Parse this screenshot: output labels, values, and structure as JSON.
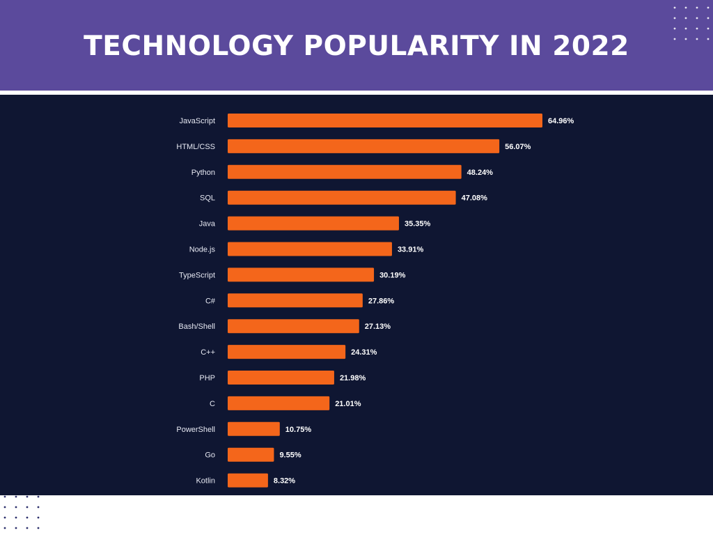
{
  "header": {
    "title": "TECHNOLOGY POPULARITY IN 2022",
    "background_color": "#5b4a9c"
  },
  "colors": {
    "panel": "#0f1632",
    "bar": "#f4661b",
    "dots": "#ffffff"
  },
  "chart_data": {
    "type": "bar",
    "orientation": "horizontal",
    "title": "",
    "xlabel": "",
    "ylabel": "",
    "xlim": [
      0,
      100
    ],
    "grid": false,
    "categories": [
      "JavaScript",
      "HTML/CSS",
      "Python",
      "SQL",
      "Java",
      "Node.js",
      "TypeScript",
      "C#",
      "Bash/Shell",
      "C++",
      "PHP",
      "C",
      "PowerShell",
      "Go",
      "Kotlin"
    ],
    "values": [
      64.96,
      56.07,
      48.24,
      47.08,
      35.35,
      33.91,
      30.19,
      27.86,
      27.13,
      24.31,
      21.98,
      21.01,
      10.75,
      9.55,
      8.32
    ],
    "value_labels": [
      "64.96%",
      "56.07%",
      "48.24%",
      "47.08%",
      "35.35%",
      "33.91%",
      "30.19%",
      "27.86%",
      "27.13%",
      "24.31%",
      "21.98%",
      "21.01%",
      "10.75%",
      "9.55%",
      "8.32%"
    ]
  }
}
